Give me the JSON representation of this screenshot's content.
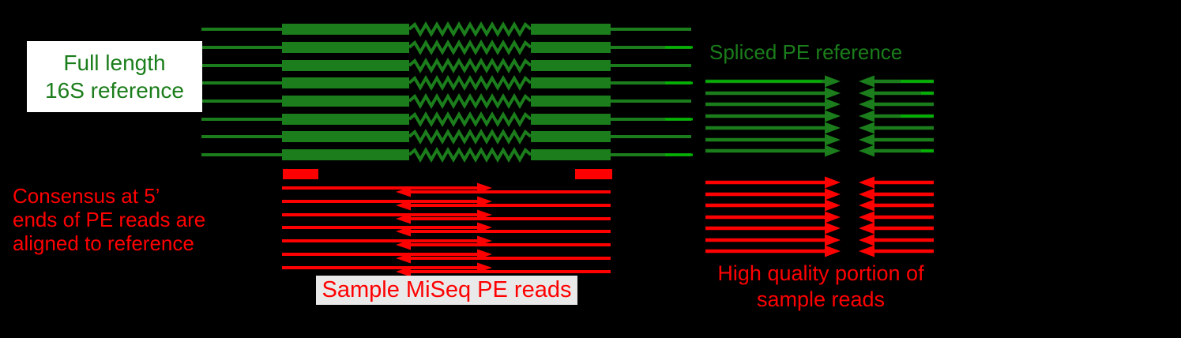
{
  "labels": {
    "full_length_line1": "Full length",
    "full_length_line2": "16S reference",
    "consensus_line1": "Consensus at 5’",
    "consensus_line2": "ends of PE reads are",
    "consensus_line3": "aligned to reference",
    "sample_reads": "Sample MiSeq PE reads",
    "spliced_reference": "Spliced PE reference",
    "high_quality_line1": "High quality portion of",
    "high_quality_line2": "sample reads"
  },
  "colors": {
    "background": "#000000",
    "green_dark": "#1b7d1b",
    "green_bright": "#00b400",
    "red": "#ff0000",
    "green_text": "#1b7d1b",
    "red_text": "#ff0000",
    "label_box_white": "#ffffff",
    "label_box_gray": "#e9e9e9"
  },
  "diagram": {
    "reference_row_count": 8,
    "spliced_pair_count": 7,
    "sample_read_pair_count": 7,
    "high_quality_pair_count": 7,
    "consensus_marker_count": 2
  }
}
